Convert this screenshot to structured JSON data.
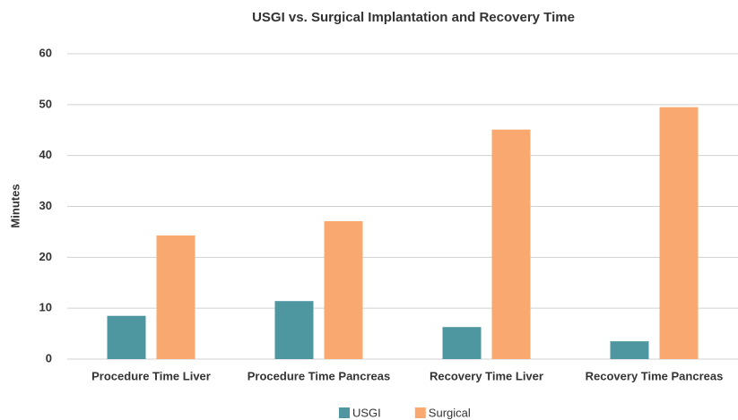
{
  "chart_data": {
    "type": "bar",
    "title": "USGI vs. Surgical Implantation and Recovery Time",
    "y_label": "Minutes",
    "categories": [
      "Procedure Time Liver",
      "Procedure Time Pancreas",
      "Recovery Time Liver",
      "Recovery Time Pancreas"
    ],
    "series": [
      {
        "name": "USGI",
        "color": "#4e97a0",
        "values": [
          8.5,
          11.4,
          6.3,
          3.5
        ]
      },
      {
        "name": "Surgical",
        "color": "#f9a870",
        "values": [
          24.3,
          27.1,
          45.1,
          49.5
        ]
      }
    ],
    "ylim": [
      0,
      60
    ],
    "yticks": [
      0,
      10,
      20,
      30,
      40,
      50,
      60
    ],
    "grid": true,
    "legend": "bottom"
  }
}
